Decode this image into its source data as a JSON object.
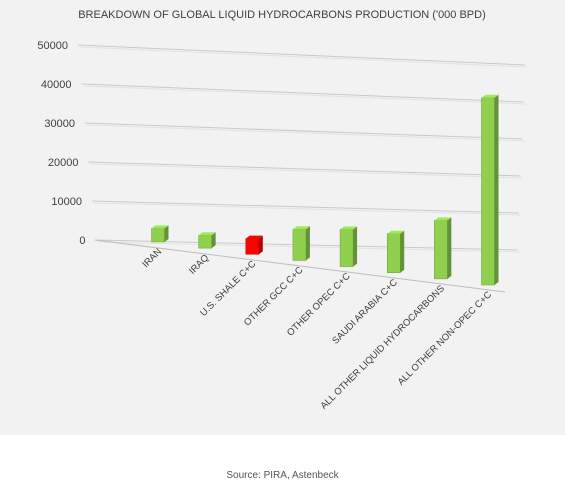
{
  "chart_data": {
    "type": "bar",
    "title": "BREAKDOWN OF GLOBAL LIQUID HYDROCARBONS PRODUCTION ('000 BPD)",
    "xlabel": "",
    "ylabel": "",
    "ylim": [
      0,
      50000
    ],
    "y_ticks": [
      "50000",
      "40000",
      "30000",
      "20000",
      "10000",
      "0"
    ],
    "grid": true,
    "perspective": "3d",
    "categories": [
      "IRAN",
      "IRAQ",
      "U.S. SHALE C+C",
      "OTHER GCC C+C",
      "OTHER OPEC C+C",
      "SAUDI ARABIA C+C",
      "ALL OTHER LIQUID HYDROCARBONS",
      "ALL OTHER NON-OPEC C+C"
    ],
    "values": [
      3500,
      3300,
      4000,
      8000,
      9500,
      10000,
      15000,
      48000
    ],
    "bar_colors": [
      "#8fd14f",
      "#8fd14f",
      "#ff0000",
      "#8fd14f",
      "#8fd14f",
      "#8fd14f",
      "#8fd14f",
      "#8fd14f"
    ]
  },
  "source": "Source: PIRA, Astenbeck"
}
